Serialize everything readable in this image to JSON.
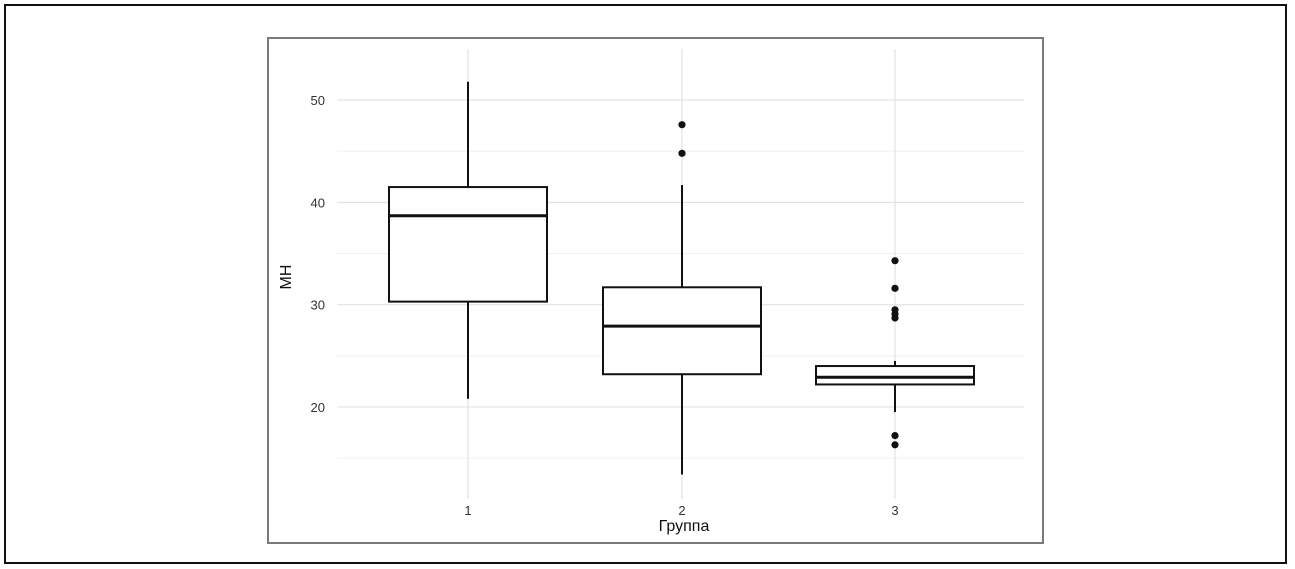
{
  "chart_data": {
    "type": "boxplot",
    "title": "",
    "xlabel": "Группа",
    "ylabel": "МН",
    "categories": [
      "1",
      "2",
      "3"
    ],
    "ylim": [
      11,
      55
    ],
    "y_ticks": [
      20,
      30,
      40,
      50
    ],
    "y_tick_labels": [
      "20",
      "30",
      "40",
      "50"
    ],
    "grid": true,
    "boxes": [
      {
        "group": "1",
        "whisker_low": 20.8,
        "q1": 30.3,
        "median": 38.7,
        "q3": 41.5,
        "whisker_high": 51.8,
        "outliers": []
      },
      {
        "group": "2",
        "whisker_low": 13.4,
        "q1": 23.2,
        "median": 27.9,
        "q3": 31.7,
        "whisker_high": 41.7,
        "outliers": [
          44.8,
          47.6
        ]
      },
      {
        "group": "3",
        "whisker_low": 19.5,
        "q1": 22.2,
        "median": 22.9,
        "q3": 24.0,
        "whisker_high": 24.5,
        "outliers": [
          16.3,
          17.2,
          28.7,
          29.1,
          29.5,
          31.6,
          34.3
        ]
      }
    ]
  }
}
